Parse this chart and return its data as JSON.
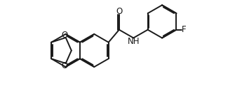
{
  "bg_color": "#ffffff",
  "line_color": "#1a1a1a",
  "text_color": "#1a1a1a",
  "line_width": 1.4,
  "font_size": 8.5,
  "fig_width": 3.45,
  "fig_height": 1.45,
  "dpi": 100,
  "xlim": [
    0,
    10.5
  ],
  "ylim": [
    0,
    5.0
  ]
}
